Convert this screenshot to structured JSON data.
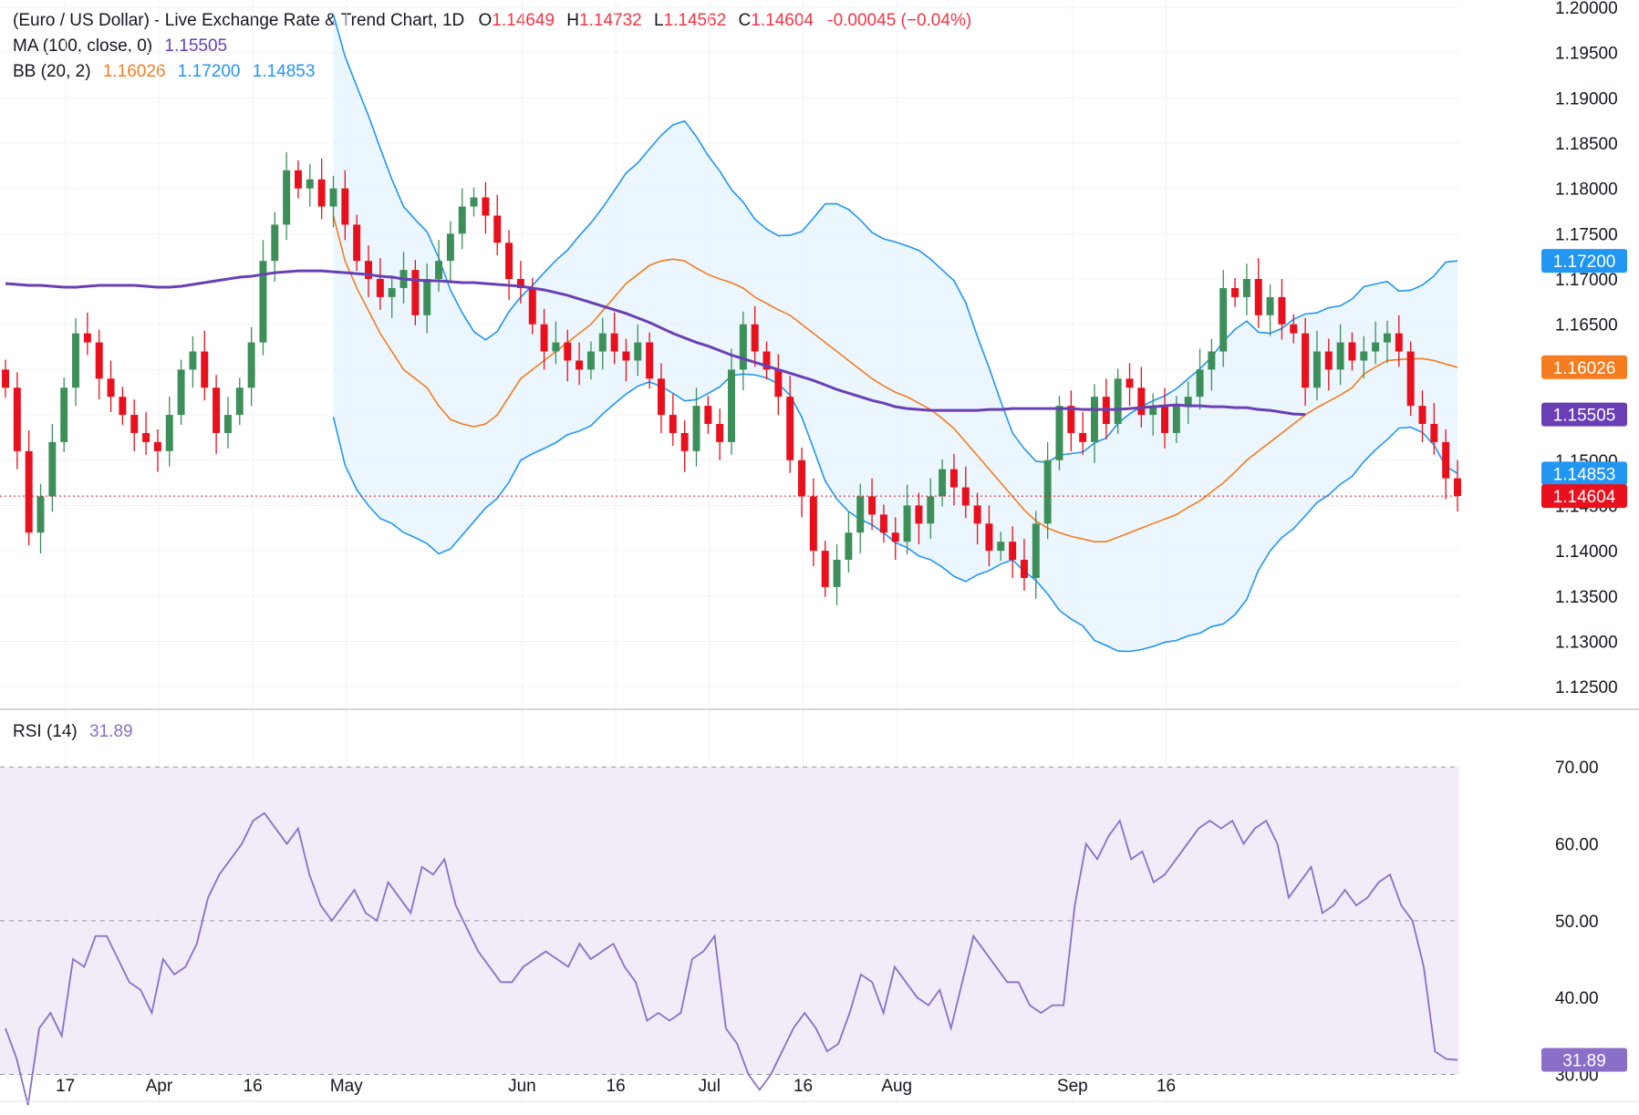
{
  "header": {
    "title": "(Euro / US Dollar) - Live Exchange Rate & Trend Chart, 1D",
    "open_label": "O",
    "open": "1.14649",
    "high_label": "H",
    "high": "1.14732",
    "low_label": "L",
    "low": "1.14562",
    "close_label": "C",
    "close": "1.14604",
    "change": "-0.00045 (−0.04%)",
    "ma_label": "MA (100, close, 0)",
    "ma_value": "1.15505",
    "bb_label": "BB (20, 2)",
    "bb_basis": "1.16026",
    "bb_upper": "1.17200",
    "bb_lower": "1.14853",
    "rsi_label": "RSI (14)",
    "rsi_value": "31.89"
  },
  "colors": {
    "up": "#26a69a",
    "up_candle": "#3d8f5a",
    "down": "#f23645",
    "down_candle": "#e8101c",
    "ma": "#6a3fb5",
    "bb_basis": "#f57c1f",
    "bb_band": "#2196f3",
    "bb_fill": "#e3f2fd",
    "rsi": "#8a6fc9",
    "rsi_fill": "#ede7f6",
    "grid": "#f0f3fa"
  },
  "chart_data": [
    {
      "type": "candlestick",
      "name": "EUR/USD price pane",
      "y_ticks": [
        "1.12500",
        "1.13000",
        "1.13500",
        "1.14000",
        "1.14500",
        "1.15000",
        "1.15500",
        "1.16000",
        "1.16500",
        "1.17000",
        "1.17500",
        "1.18000",
        "1.18500",
        "1.19000",
        "1.19500",
        "1.20000"
      ],
      "ylim": [
        1.1225,
        1.2008
      ],
      "x_ticks": [
        "17",
        "Apr",
        "16",
        "May",
        "Jun",
        "16",
        "Jul",
        "16",
        "Aug",
        "Sep",
        "16"
      ],
      "x_tick_bars": [
        2,
        10,
        18,
        26,
        41,
        49,
        57,
        65,
        73,
        88,
        96
      ],
      "price_tags": [
        {
          "value": 1.172,
          "label": "1.17200",
          "color": "#2196f3"
        },
        {
          "value": 1.16026,
          "label": "1.16026",
          "color": "#f57c1f"
        },
        {
          "value": 1.15505,
          "label": "1.15505",
          "color": "#6a3fb5"
        },
        {
          "value": 1.14853,
          "label": "1.14853",
          "color": "#2196f3"
        },
        {
          "value": 1.14604,
          "label": "1.14604",
          "color": "#e8101c"
        }
      ],
      "last_close": 1.14604,
      "close": [
        1.158,
        1.151,
        1.142,
        1.146,
        1.152,
        1.158,
        1.164,
        1.163,
        1.159,
        1.157,
        1.155,
        1.153,
        1.152,
        1.151,
        1.155,
        1.16,
        1.162,
        1.158,
        1.153,
        1.155,
        1.158,
        1.163,
        1.172,
        1.176,
        1.182,
        1.18,
        1.181,
        1.178,
        1.18,
        1.176,
        1.172,
        1.17,
        1.168,
        1.169,
        1.171,
        1.166,
        1.17,
        1.172,
        1.175,
        1.178,
        1.179,
        1.177,
        1.174,
        1.17,
        1.169,
        1.165,
        1.162,
        1.163,
        1.161,
        1.16,
        1.162,
        1.164,
        1.162,
        1.161,
        1.163,
        1.159,
        1.155,
        1.153,
        1.151,
        1.156,
        1.154,
        1.152,
        1.16,
        1.165,
        1.162,
        1.16,
        1.157,
        1.15,
        1.146,
        1.14,
        1.136,
        1.139,
        1.142,
        1.146,
        1.144,
        1.142,
        1.141,
        1.145,
        1.143,
        1.146,
        1.149,
        1.147,
        1.145,
        1.143,
        1.14,
        1.141,
        1.139,
        1.137,
        1.143,
        1.15,
        1.156,
        1.153,
        1.152,
        1.157,
        1.154,
        1.159,
        1.158,
        1.155,
        1.156,
        1.153,
        1.156,
        1.157,
        1.16,
        1.162,
        1.169,
        1.168,
        1.17,
        1.166,
        1.168,
        1.165,
        1.164,
        1.158,
        1.162,
        1.16,
        1.163,
        1.161,
        1.162,
        1.163,
        1.164,
        1.162,
        1.156,
        1.154,
        1.152,
        1.148,
        1.14604
      ],
      "ma100": [
        1.1695,
        1.1694,
        1.1693,
        1.1693,
        1.1692,
        1.1691,
        1.1691,
        1.1692,
        1.1693,
        1.1693,
        1.1693,
        1.1693,
        1.1692,
        1.1691,
        1.1691,
        1.1692,
        1.1694,
        1.1696,
        1.1698,
        1.17,
        1.1702,
        1.1703,
        1.1705,
        1.1707,
        1.1708,
        1.1709,
        1.1709,
        1.1709,
        1.1708,
        1.1707,
        1.1706,
        1.1705,
        1.1703,
        1.1702,
        1.17,
        1.1699,
        1.1698,
        1.1698,
        1.1697,
        1.1696,
        1.1696,
        1.1695,
        1.1694,
        1.1693,
        1.1692,
        1.169,
        1.1688,
        1.1685,
        1.1682,
        1.1678,
        1.1674,
        1.167,
        1.1666,
        1.1662,
        1.1657,
        1.1652,
        1.1646,
        1.164,
        1.1635,
        1.163,
        1.1626,
        1.1621,
        1.1616,
        1.1612,
        1.1608,
        1.1604,
        1.16,
        1.1596,
        1.1592,
        1.1588,
        1.1583,
        1.1578,
        1.1574,
        1.157,
        1.1566,
        1.1563,
        1.1559,
        1.1557,
        1.1556,
        1.1555,
        1.1555,
        1.1555,
        1.1555,
        1.1555,
        1.1556,
        1.1556,
        1.1557,
        1.1557,
        1.1557,
        1.1557,
        1.1557,
        1.1557,
        1.1556,
        1.1556,
        1.1556,
        1.1556,
        1.1557,
        1.1558,
        1.1559,
        1.156,
        1.1561,
        1.156,
        1.156,
        1.1559,
        1.1559,
        1.1558,
        1.1558,
        1.1556,
        1.1555,
        1.1553,
        1.1551,
        1.15505
      ],
      "bb_basis": [
        1.177,
        1.172,
        1.169,
        1.1665,
        1.164,
        1.162,
        1.16,
        1.159,
        1.158,
        1.156,
        1.1545,
        1.154,
        1.1537,
        1.154,
        1.155,
        1.157,
        1.159,
        1.16,
        1.161,
        1.162,
        1.163,
        1.164,
        1.165,
        1.1665,
        1.168,
        1.1695,
        1.1705,
        1.1715,
        1.172,
        1.1722,
        1.172,
        1.1712,
        1.1705,
        1.17,
        1.1696,
        1.169,
        1.168,
        1.1673,
        1.1666,
        1.166,
        1.165,
        1.164,
        1.163,
        1.162,
        1.161,
        1.16,
        1.159,
        1.1582,
        1.1575,
        1.157,
        1.1563,
        1.1556,
        1.1546,
        1.1535,
        1.152,
        1.1505,
        1.149,
        1.1475,
        1.146,
        1.1445,
        1.1433,
        1.1425,
        1.142,
        1.1416,
        1.1413,
        1.141,
        1.141,
        1.1415,
        1.142,
        1.1425,
        1.143,
        1.1435,
        1.144,
        1.1448,
        1.1455,
        1.1465,
        1.1475,
        1.1487,
        1.15,
        1.151,
        1.152,
        1.153,
        1.154,
        1.155,
        1.1558,
        1.1565,
        1.1572,
        1.158,
        1.1595,
        1.1603,
        1.161,
        1.1611,
        1.1612,
        1.1612,
        1.161,
        1.1606,
        1.16026
      ]
    },
    {
      "type": "line",
      "name": "RSI pane",
      "y_ticks": [
        "30.00",
        "40.00",
        "50.00",
        "60.00",
        "70.00"
      ],
      "ylim": [
        26.5,
        77.5
      ],
      "levels": [
        30,
        50,
        70
      ],
      "values": [
        36,
        32,
        26,
        36,
        38,
        35,
        45,
        44,
        48,
        48,
        45,
        42,
        41,
        38,
        45,
        43,
        44,
        47,
        53,
        56,
        58,
        60,
        63,
        64,
        62,
        60,
        62,
        56,
        52,
        50,
        52,
        54,
        51,
        50,
        55,
        53,
        51,
        57,
        56,
        58,
        52,
        49,
        46,
        44,
        42,
        42,
        44,
        45,
        46,
        45,
        44,
        47,
        45,
        46,
        47,
        44,
        42,
        37,
        38,
        37,
        38,
        45,
        46,
        48,
        36,
        34,
        30,
        28,
        30,
        33,
        36,
        38,
        36,
        33,
        34,
        38,
        43,
        42,
        38,
        44,
        42,
        40,
        39,
        41,
        36,
        42,
        48,
        46,
        44,
        42,
        42,
        39,
        38,
        39,
        39,
        52,
        60,
        58,
        61,
        63,
        58,
        59,
        55,
        56,
        58,
        60,
        62,
        63,
        62,
        63,
        60,
        62,
        63,
        60,
        53,
        55,
        57,
        51,
        52,
        54,
        52,
        53,
        55,
        56,
        52,
        50,
        44,
        33,
        32,
        31.89
      ],
      "last_value": 31.89
    }
  ]
}
